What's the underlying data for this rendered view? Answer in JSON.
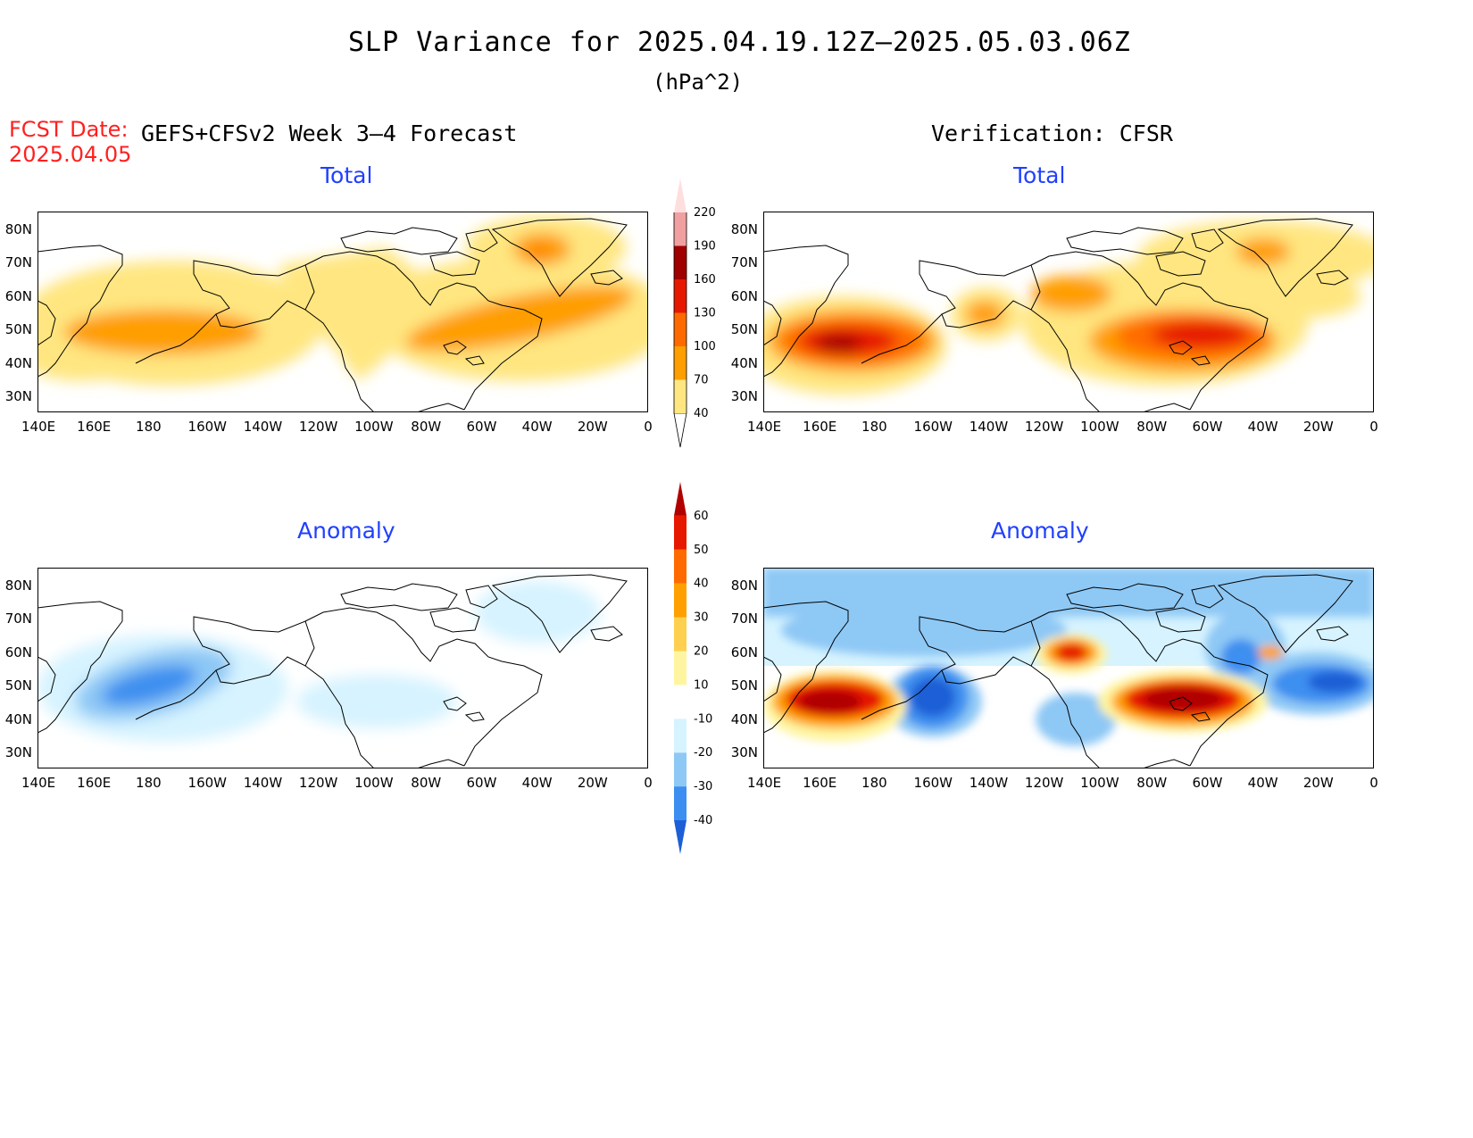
{
  "header": {
    "title": "SLP Variance for 2025.04.19.12Z–2025.05.03.06Z",
    "units": "(hPa^2)",
    "fcst_label": "FCST Date:",
    "fcst_date": "2025.04.05",
    "left_heading": "GEFS+CFSv2 Week 3–4 Forecast",
    "right_heading": "Verification: CFSR"
  },
  "panels": [
    {
      "id": "fcst-total",
      "title": "Total"
    },
    {
      "id": "verif-total",
      "title": "Total"
    },
    {
      "id": "fcst-anomaly",
      "title": "Anomaly"
    },
    {
      "id": "verif-anomaly",
      "title": "Anomaly"
    }
  ],
  "axes": {
    "lon_labels": [
      "140E",
      "160E",
      "180",
      "160W",
      "140W",
      "120W",
      "100W",
      "80W",
      "60W",
      "40W",
      "20W",
      "0"
    ],
    "lat_labels": [
      "80N",
      "70N",
      "60N",
      "50N",
      "40N",
      "30N"
    ]
  },
  "colorbars": {
    "total": {
      "levels": [
        "40",
        "70",
        "100",
        "130",
        "160",
        "190",
        "220"
      ],
      "colors": [
        "#ffe680",
        "#ff9e00",
        "#ff6a00",
        "#e61900",
        "#a00000",
        "#f0a0a0",
        "#ffdede"
      ]
    },
    "anomaly": {
      "levels": [
        "-40",
        "-30",
        "-20",
        "-10",
        "10",
        "20",
        "30",
        "40",
        "50",
        "60"
      ],
      "colors": [
        "#1c5fd6",
        "#3c8ff0",
        "#8ec8f5",
        "#d6f3ff",
        "#ffffff",
        "#fff5a0",
        "#ffd050",
        "#ffa000",
        "#ff6a00",
        "#e61900",
        "#b00000"
      ]
    }
  }
}
